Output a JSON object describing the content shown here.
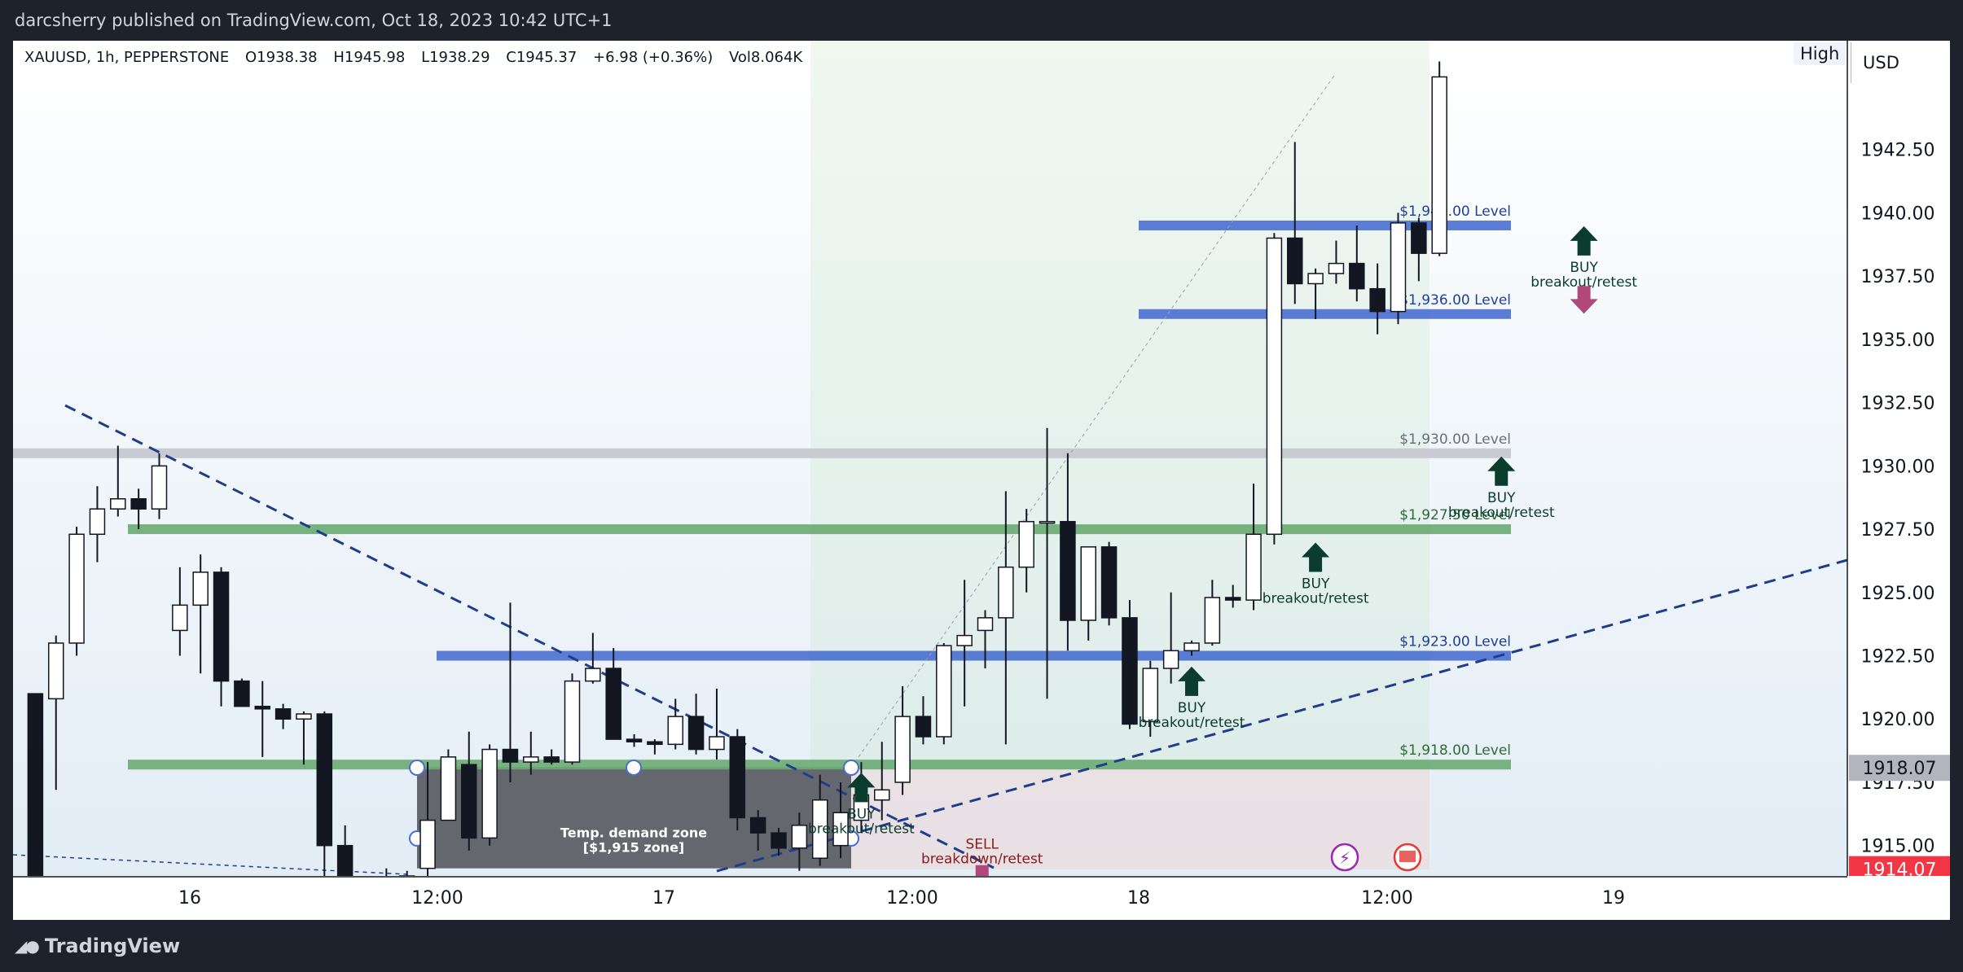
{
  "header": {
    "publisher_line": "darcsherry published on TradingView.com, Oct 18, 2023 10:42 UTC+1"
  },
  "footer": {
    "brand": "TradingView"
  },
  "symbol_bar": {
    "symbol": "XAUUSD, 1h, PEPPERSTONE",
    "open": "O1938.38",
    "high": "H1945.98",
    "low": "L1938.29",
    "close": "C1945.37",
    "change": "+6.98 (+0.36%)",
    "volume": "Vol8.064K",
    "high_button": "High",
    "currency": "USD"
  },
  "chart_data": {
    "type": "candlestick",
    "timeframe": "1h",
    "x_ticks": [
      "16",
      "12:00",
      "17",
      "12:00",
      "18",
      "12:00",
      "19"
    ],
    "y_ticks": [
      "1942.50",
      "1940.00",
      "1937.50",
      "1935.00",
      "1932.50",
      "1930.00",
      "1927.50",
      "1925.00",
      "1922.50",
      "1920.00",
      "1917.50",
      "1915.00"
    ],
    "ylim": [
      1913.8,
      1946.8
    ],
    "price_labels": [
      {
        "value": "1918.07",
        "bg": "#b2b5be",
        "fg": "#131722"
      },
      {
        "value": "1914.07",
        "bg": "#f23645",
        "fg": "#ffffff"
      }
    ],
    "candles": [
      [
        0,
        1921.0,
        1921.0,
        1910.0,
        1910.5
      ],
      [
        1,
        1920.8,
        1923.3,
        1917.2,
        1923.0
      ],
      [
        2,
        1923.0,
        1927.6,
        1922.5,
        1927.3
      ],
      [
        3,
        1927.3,
        1929.2,
        1926.2,
        1928.3
      ],
      [
        4,
        1928.3,
        1930.8,
        1928.0,
        1928.7
      ],
      [
        5,
        1928.7,
        1929.1,
        1927.5,
        1928.3
      ],
      [
        6,
        1928.3,
        1930.5,
        1927.9,
        1930.0
      ],
      [
        7,
        1923.5,
        1926.0,
        1922.5,
        1924.5
      ],
      [
        8,
        1924.5,
        1926.5,
        1921.8,
        1925.8
      ],
      [
        9,
        1925.8,
        1926.0,
        1920.5,
        1921.5
      ],
      [
        10,
        1921.5,
        1921.6,
        1920.5,
        1920.5
      ],
      [
        11,
        1920.5,
        1921.5,
        1918.5,
        1920.4
      ],
      [
        12,
        1920.4,
        1920.6,
        1919.6,
        1920.0
      ],
      [
        13,
        1920.0,
        1920.3,
        1918.2,
        1920.2
      ],
      [
        14,
        1920.2,
        1920.3,
        1913.0,
        1915.0
      ],
      [
        15,
        1915.0,
        1915.8,
        1913.2,
        1913.3
      ],
      [
        16,
        1913.4,
        1913.6,
        1913.2,
        1913.5
      ],
      [
        17,
        1913.5,
        1914.1,
        1913.3,
        1913.6
      ],
      [
        18,
        1913.6,
        1914.0,
        1913.2,
        1913.8
      ],
      [
        19,
        1914.1,
        1918.3,
        1913.8,
        1916.0
      ],
      [
        20,
        1916.0,
        1918.8,
        1916.0,
        1918.5
      ],
      [
        21,
        1918.2,
        1919.5,
        1914.8,
        1915.3
      ],
      [
        22,
        1915.3,
        1919.0,
        1915.0,
        1918.8
      ],
      [
        23,
        1918.8,
        1924.6,
        1917.5,
        1918.3
      ],
      [
        24,
        1918.3,
        1919.5,
        1917.8,
        1918.5
      ],
      [
        25,
        1918.5,
        1918.8,
        1918.2,
        1918.3
      ],
      [
        26,
        1918.3,
        1921.8,
        1918.2,
        1921.5
      ],
      [
        27,
        1921.5,
        1923.4,
        1921.4,
        1922.0
      ],
      [
        28,
        1922.0,
        1922.8,
        1919.2,
        1919.2
      ],
      [
        29,
        1919.2,
        1919.4,
        1918.9,
        1919.1
      ],
      [
        30,
        1919.1,
        1919.2,
        1918.6,
        1919.0
      ],
      [
        31,
        1919.0,
        1920.8,
        1918.8,
        1920.1
      ],
      [
        32,
        1920.1,
        1921.0,
        1918.6,
        1918.8
      ],
      [
        33,
        1918.8,
        1921.2,
        1918.4,
        1919.3
      ],
      [
        34,
        1919.3,
        1919.6,
        1915.6,
        1916.1
      ],
      [
        35,
        1916.1,
        1916.4,
        1914.8,
        1915.5
      ],
      [
        36,
        1915.5,
        1915.7,
        1914.6,
        1914.9
      ],
      [
        37,
        1914.9,
        1916.3,
        1914.0,
        1915.8
      ],
      [
        38,
        1914.5,
        1917.8,
        1914.2,
        1916.8
      ],
      [
        39,
        1915.0,
        1917.5,
        1914.5,
        1916.3
      ],
      [
        40,
        1916.0,
        1918.3,
        1915.5,
        1917.0
      ],
      [
        41,
        1916.8,
        1919.1,
        1916.0,
        1917.2
      ],
      [
        42,
        1917.5,
        1921.3,
        1917.0,
        1920.1
      ],
      [
        43,
        1920.1,
        1920.9,
        1919.0,
        1919.3
      ],
      [
        44,
        1919.3,
        1923.0,
        1919.0,
        1922.9
      ],
      [
        45,
        1922.9,
        1925.5,
        1920.5,
        1923.3
      ],
      [
        46,
        1923.5,
        1924.3,
        1922.0,
        1924.0
      ],
      [
        47,
        1924.0,
        1929.0,
        1919.0,
        1926.0
      ],
      [
        48,
        1926.0,
        1928.3,
        1925.0,
        1927.8
      ],
      [
        49,
        1927.8,
        1931.5,
        1920.8,
        1927.8
      ],
      [
        50,
        1927.8,
        1930.5,
        1922.7,
        1923.9
      ],
      [
        51,
        1923.9,
        1926.8,
        1923.1,
        1926.8
      ],
      [
        52,
        1926.8,
        1927.0,
        1923.7,
        1924.0
      ],
      [
        53,
        1924.0,
        1924.7,
        1919.6,
        1919.8
      ],
      [
        54,
        1919.9,
        1922.3,
        1919.3,
        1922.0
      ],
      [
        55,
        1922.0,
        1925.0,
        1921.4,
        1922.7
      ],
      [
        56,
        1922.7,
        1923.1,
        1922.5,
        1923.0
      ],
      [
        57,
        1923.0,
        1925.5,
        1922.9,
        1924.8
      ],
      [
        58,
        1924.8,
        1925.3,
        1924.4,
        1924.7
      ],
      [
        59,
        1924.7,
        1929.3,
        1924.3,
        1927.3
      ],
      [
        60,
        1927.3,
        1939.2,
        1926.9,
        1939.0
      ],
      [
        61,
        1939.0,
        1942.8,
        1936.4,
        1937.2
      ],
      [
        62,
        1937.2,
        1937.8,
        1935.8,
        1937.6
      ],
      [
        63,
        1937.6,
        1938.9,
        1937.2,
        1938.0
      ],
      [
        64,
        1938.0,
        1939.5,
        1936.5,
        1937.0
      ],
      [
        65,
        1937.0,
        1938.0,
        1935.2,
        1936.1
      ],
      [
        66,
        1936.1,
        1940.0,
        1935.6,
        1939.6
      ],
      [
        67,
        1939.6,
        1939.8,
        1937.3,
        1938.4
      ],
      [
        68,
        1938.4,
        1945.98,
        1938.29,
        1945.37
      ]
    ],
    "levels": [
      {
        "label": "$1,940.00 Level",
        "price": 1939.5,
        "color": "#4a6fd0"
      },
      {
        "label": "$1,936.00 Level",
        "price": 1936.0,
        "color": "#4a6fd0"
      },
      {
        "label": "$1,930.00 Level",
        "price": 1930.5,
        "color": "#c3c6cc"
      },
      {
        "label": "$1,927.50 Level",
        "price": 1927.5,
        "color": "#6aab72"
      },
      {
        "label": "$1,923.00 Level",
        "price": 1922.5,
        "color": "#4a6fd0"
      },
      {
        "label": "$1,918.00 Level",
        "price": 1918.2,
        "color": "#6aab72"
      }
    ],
    "zone": {
      "label_line1": "Temp. demand zone",
      "label_line2": "[$1,915 zone]"
    },
    "signals": [
      {
        "kind": "buy",
        "line1": "BUY",
        "line2": "breakout/retest",
        "price": 1918.0,
        "bar": 40.0
      },
      {
        "kind": "buy",
        "line1": "BUY",
        "line2": "breakout/retest",
        "price": 1922.2,
        "bar": 56.0
      },
      {
        "kind": "buy",
        "line1": "BUY",
        "line2": "breakout/retest",
        "price": 1927.1,
        "bar": 62.0
      },
      {
        "kind": "buy",
        "line1": "BUY",
        "line2": "breakout/retest",
        "price": 1930.5,
        "bar": 71.0
      },
      {
        "kind": "buy",
        "line1": "BUY",
        "line2": "breakout/retest",
        "price": 1939.6,
        "bar": 75.0
      },
      {
        "kind": "sell",
        "line1": "SELL",
        "line2": "breakdown/retest",
        "price": 1915.0,
        "bar": 45.3
      },
      {
        "kind": "sell-small",
        "price": 1937.3,
        "bar": 75.0
      }
    ]
  }
}
